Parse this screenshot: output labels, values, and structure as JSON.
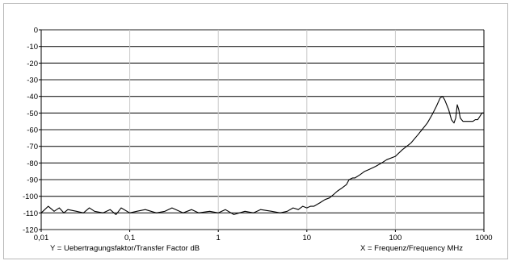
{
  "chart_data": {
    "type": "line",
    "xscale": "log",
    "xlim": [
      0.01,
      1000
    ],
    "ylim": [
      -120,
      0
    ],
    "grid": true,
    "x_ticks": [
      0.01,
      0.1,
      1,
      10,
      100,
      1000
    ],
    "x_tick_labels": [
      "0,01",
      "0,1",
      "1",
      "10",
      "100",
      "1000"
    ],
    "y_ticks": [
      0,
      -10,
      -20,
      -30,
      -40,
      -50,
      -60,
      -70,
      -80,
      -90,
      -100,
      -110,
      -120
    ],
    "y_tick_labels": [
      "0",
      "-10",
      "-20",
      "-30",
      "-40",
      "-50",
      "-60",
      "-70",
      "-80",
      "-90",
      "-100",
      "-110",
      "-120"
    ],
    "ylabel": "Y = Uebertragungsfaktor/Transfer Factor dB",
    "xlabel": "X = Frequenz/Frequency MHz",
    "series": [
      {
        "color": "#000000",
        "x": [
          0.01,
          0.012,
          0.014,
          0.016,
          0.018,
          0.02,
          0.025,
          0.03,
          0.035,
          0.04,
          0.05,
          0.06,
          0.07,
          0.08,
          0.1,
          0.12,
          0.15,
          0.2,
          0.25,
          0.3,
          0.4,
          0.5,
          0.6,
          0.8,
          1,
          1.2,
          1.5,
          2,
          2.5,
          3,
          4,
          5,
          6,
          7,
          8,
          9,
          10,
          11,
          12,
          14,
          16,
          18,
          20,
          22,
          25,
          28,
          30,
          33,
          35,
          40,
          45,
          50,
          60,
          70,
          80,
          100,
          120,
          150,
          180,
          200,
          230,
          260,
          290,
          320,
          340,
          360,
          380,
          400,
          430,
          460,
          480,
          500,
          520,
          540,
          560,
          580,
          600,
          650,
          700,
          750,
          800,
          850,
          900,
          950,
          1000
        ],
        "y": [
          -110,
          -106,
          -109,
          -107,
          -110,
          -108,
          -109,
          -110,
          -107,
          -109,
          -110,
          -108,
          -111,
          -107,
          -110,
          -109,
          -108,
          -110,
          -109,
          -107,
          -110,
          -108,
          -110,
          -109,
          -110,
          -108,
          -111,
          -109,
          -110,
          -108,
          -109,
          -110,
          -109,
          -107,
          -108,
          -106,
          -107,
          -106,
          -106,
          -104,
          -102,
          -101,
          -99,
          -97,
          -95,
          -93,
          -90,
          -89,
          -89,
          -87,
          -85,
          -84,
          -82,
          -80,
          -78,
          -76,
          -72,
          -68,
          -63,
          -60,
          -56,
          -51,
          -46,
          -41,
          -40,
          -42,
          -45,
          -48,
          -54,
          -56,
          -53,
          -45,
          -48,
          -53,
          -54,
          -55,
          -55,
          -55,
          -55,
          -55,
          -54,
          -54,
          -52,
          -50,
          -50
        ]
      }
    ]
  }
}
